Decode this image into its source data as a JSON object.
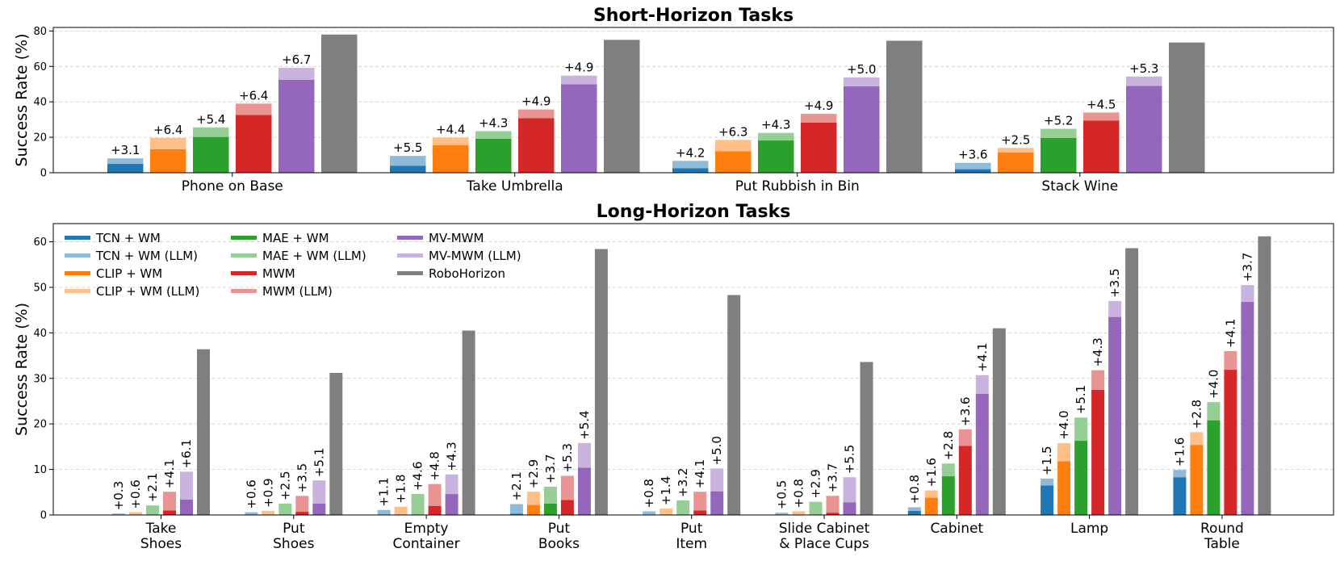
{
  "chart_data": [
    {
      "type": "bar",
      "title": "Short-Horizon Tasks",
      "ylabel": "Success Rate (%)",
      "ylim": [
        0,
        82
      ],
      "yticks": [
        "0",
        "20",
        "40",
        "60",
        "80"
      ],
      "grid": true,
      "categories": [
        "Phone on Base",
        "Take Umbrella",
        "Put Rubbish in Bin",
        "Stack Wine"
      ],
      "series": [
        {
          "name": "TCN + WM",
          "values": [
            5.0,
            4.0,
            2.5,
            2.0
          ],
          "llm_gain": [
            3.1,
            5.5,
            4.2,
            3.6
          ],
          "gain_labels": [
            "+3.1",
            "+5.5",
            "+4.2",
            "+3.6"
          ]
        },
        {
          "name": "CLIP + WM",
          "values": [
            13.3,
            15.5,
            12.2,
            11.5
          ],
          "llm_gain": [
            6.4,
            4.4,
            6.3,
            2.5
          ],
          "gain_labels": [
            "+6.4",
            "+4.4",
            "+6.3",
            "+2.5"
          ]
        },
        {
          "name": "MAE + WM",
          "values": [
            20.2,
            19.2,
            18.2,
            19.6
          ],
          "llm_gain": [
            5.4,
            4.3,
            4.3,
            5.2
          ],
          "gain_labels": [
            "+5.4",
            "+4.3",
            "+4.3",
            "+5.2"
          ]
        },
        {
          "name": "MWM",
          "values": [
            32.6,
            30.8,
            28.3,
            29.5
          ],
          "llm_gain": [
            6.4,
            4.9,
            4.9,
            4.5
          ],
          "gain_labels": [
            "+6.4",
            "+4.9",
            "+4.9",
            "+4.5"
          ]
        },
        {
          "name": "MV-MWM",
          "values": [
            52.5,
            49.9,
            48.8,
            49.0
          ],
          "llm_gain": [
            6.7,
            4.9,
            5.0,
            5.3
          ],
          "gain_labels": [
            "+6.7",
            "+4.9",
            "+5.0",
            "+5.3"
          ]
        },
        {
          "name": "RoboHorizon",
          "values": [
            78.0,
            75.0,
            74.5,
            73.5
          ],
          "llm_gain": [
            0,
            0,
            0,
            0
          ],
          "gain_labels": [
            "",
            "",
            "",
            ""
          ]
        }
      ]
    },
    {
      "type": "bar",
      "title": "Long-Horizon Tasks",
      "ylabel": "Success Rate (%)",
      "ylim": [
        0,
        64
      ],
      "yticks": [
        "0",
        "10",
        "20",
        "30",
        "40",
        "50",
        "60"
      ],
      "grid": true,
      "legend_position": "top-left",
      "categories": [
        [
          "Take",
          "Shoes"
        ],
        [
          "Put",
          "Shoes"
        ],
        [
          "Empty",
          "Container"
        ],
        [
          "Put",
          "Books"
        ],
        [
          "Put",
          "Item"
        ],
        [
          "Slide Cabinet",
          "& Place Cups"
        ],
        [
          "Cabinet"
        ],
        [
          "Lamp"
        ],
        [
          "Round",
          "Table"
        ]
      ],
      "series": [
        {
          "name": "TCN + WM",
          "values": [
            0,
            0,
            0,
            0.3,
            0,
            0,
            0.9,
            6.5,
            8.3
          ],
          "llm_gain": [
            0.3,
            0.6,
            1.1,
            2.1,
            0.8,
            0.5,
            0.8,
            1.5,
            1.6
          ],
          "gain_labels": [
            "+0.3",
            "+0.6",
            "+1.1",
            "+2.1",
            "+0.8",
            "+0.5",
            "+0.8",
            "+1.5",
            "+1.6"
          ]
        },
        {
          "name": "CLIP + WM",
          "values": [
            0,
            0,
            0,
            2.2,
            0,
            0,
            3.8,
            11.8,
            15.4
          ],
          "llm_gain": [
            0.6,
            0.9,
            1.8,
            2.9,
            1.4,
            0.8,
            1.6,
            4.0,
            2.8
          ],
          "gain_labels": [
            "+0.6",
            "+0.9",
            "+1.8",
            "+2.9",
            "+1.4",
            "+0.8",
            "+1.6",
            "+4.0",
            "+2.8"
          ]
        },
        {
          "name": "MAE + WM",
          "values": [
            0,
            0,
            0,
            2.5,
            0,
            0,
            8.5,
            16.3,
            20.8
          ],
          "llm_gain": [
            2.1,
            2.5,
            4.6,
            3.7,
            3.2,
            2.9,
            2.8,
            5.1,
            4.0
          ],
          "gain_labels": [
            "+2.1",
            "+2.5",
            "+4.6",
            "+3.7",
            "+3.2",
            "+2.9",
            "+2.8",
            "+5.1",
            "+4.0"
          ]
        },
        {
          "name": "MWM",
          "values": [
            1.0,
            0.7,
            2.0,
            3.3,
            1.0,
            0.5,
            15.2,
            27.5,
            31.9
          ],
          "llm_gain": [
            4.1,
            3.5,
            4.8,
            5.3,
            4.1,
            3.7,
            3.6,
            4.3,
            4.1
          ],
          "gain_labels": [
            "+4.1",
            "+3.5",
            "+4.8",
            "+5.3",
            "+4.1",
            "+3.7",
            "+3.6",
            "+4.3",
            "+4.1"
          ]
        },
        {
          "name": "MV-MWM",
          "values": [
            3.4,
            2.5,
            4.6,
            10.4,
            5.2,
            2.8,
            26.6,
            43.5,
            46.8
          ],
          "llm_gain": [
            6.1,
            5.1,
            4.3,
            5.4,
            5.0,
            5.5,
            4.1,
            3.5,
            3.7
          ],
          "gain_labels": [
            "+6.1",
            "+5.1",
            "+4.3",
            "+5.4",
            "+5.0",
            "+5.5",
            "+4.1",
            "+3.5",
            "+3.7"
          ]
        },
        {
          "name": "RoboHorizon",
          "values": [
            36.4,
            31.2,
            40.5,
            58.4,
            48.3,
            33.6,
            41.0,
            58.6,
            61.2
          ],
          "llm_gain": [
            0,
            0,
            0,
            0,
            0,
            0,
            0,
            0,
            0
          ],
          "gain_labels": [
            "",
            "",
            "",
            "",
            "",
            "",
            "",
            "",
            ""
          ]
        }
      ]
    }
  ],
  "legend": [
    {
      "label": "TCN + WM",
      "color": "#1f77b4"
    },
    {
      "label": "TCN + WM (LLM)",
      "color": "#8fbbd9"
    },
    {
      "label": "CLIP + WM",
      "color": "#ff7f0e"
    },
    {
      "label": "CLIP + WM (LLM)",
      "color": "#ffbf86"
    },
    {
      "label": "MAE + WM",
      "color": "#2ca02c"
    },
    {
      "label": "MAE + WM (LLM)",
      "color": "#95cf95"
    },
    {
      "label": "MWM",
      "color": "#d62728"
    },
    {
      "label": "MWM (LLM)",
      "color": "#ea9393"
    },
    {
      "label": "MV-MWM",
      "color": "#9467bd"
    },
    {
      "label": "MV-MWM (LLM)",
      "color": "#c9b3de"
    },
    {
      "label": "RoboHorizon",
      "color": "#7f7f7f"
    }
  ],
  "colors": {
    "base": [
      "#1f77b4",
      "#ff7f0e",
      "#2ca02c",
      "#d62728",
      "#9467bd",
      "#7f7f7f"
    ],
    "llm": [
      "#8fbbd9",
      "#ffbf86",
      "#95cf95",
      "#ea9393",
      "#c9b3de",
      "#7f7f7f"
    ],
    "grid": "#cccccc"
  }
}
